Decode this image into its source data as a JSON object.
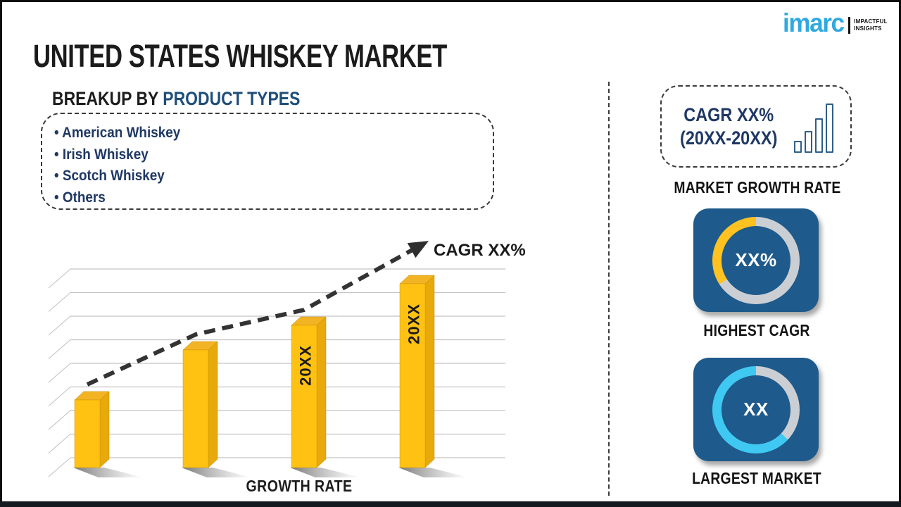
{
  "logo": {
    "brand": "imarc",
    "tagline_line1": "IMPACTFUL",
    "tagline_line2": "INSIGHTS"
  },
  "title": "UNITED STATES WHISKEY MARKET",
  "breakup": {
    "prefix": "BREAKUP BY ",
    "highlight": "PRODUCT TYPES",
    "items": [
      "American Whiskey",
      "Irish Whiskey",
      "Scotch Whiskey",
      "Others"
    ]
  },
  "chart_data": {
    "type": "bar",
    "title": "",
    "xlabel": "GROWTH RATE",
    "ylabel": "",
    "categories": [
      "",
      "",
      "20XX",
      "20XX"
    ],
    "values": [
      96,
      167,
      202,
      261
    ],
    "values_note": "relative bar heights in px; no numeric y-axis shown in source",
    "trend_label": "CAGR XX%",
    "trend_style": "dashed rising arrow over bar tops",
    "grid": "9 horizontal gridlines with 3D perspective ticks",
    "legend": "none",
    "bar_color": "#FFC112"
  },
  "right_panel": {
    "cagr_box": {
      "line1": "CAGR XX%",
      "line2": "(20XX-20XX)",
      "icon": "growing-bars-icon"
    },
    "market_growth_rate_label": "MARKET GROWTH RATE",
    "highest_cagr": {
      "value": "XX%",
      "label": "HIGHEST CAGR",
      "ring_color": "#FFC220",
      "track_color": "#CBCFD4",
      "track_deg": 237
    },
    "largest_market": {
      "value": "XX",
      "label": "LARGEST MARKET",
      "ring_color": "#3FC9F2",
      "track_color": "#CBCFD4",
      "track_deg": 133
    }
  },
  "colors": {
    "accent_blue": "#1E5A8B",
    "navy_text": "#1F3864",
    "heading_blue": "#1F4E79",
    "bar_yellow": "#FFC112",
    "logo_blue": "#2FA9E0",
    "bottom_bar": "#14191f"
  }
}
